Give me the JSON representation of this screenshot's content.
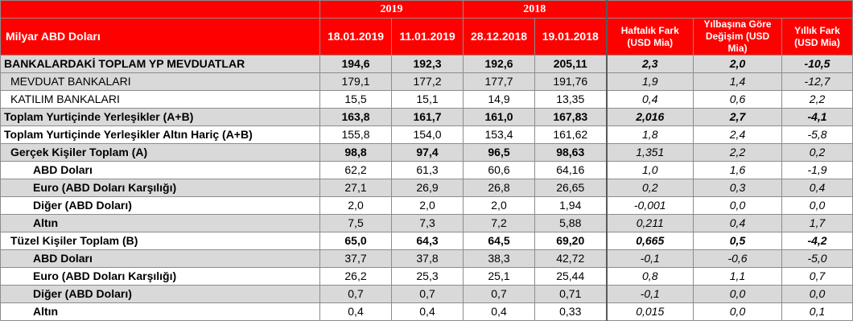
{
  "header": {
    "title": "Milyar ABD Doları",
    "year_2019": "2019",
    "year_2018": "2018",
    "dates": [
      "18.01.2019",
      "11.01.2019",
      "28.12.2018",
      "19.01.2018"
    ],
    "change_cols": [
      "Haftalık Fark (USD Mia)",
      "Yılbaşına Göre Değişim (USD Mia)",
      "Yıllık Fark (USD Mia)"
    ]
  },
  "rows": [
    {
      "label": "BANKALARDAKİ TOPLAM YP MEVDUATLAR",
      "values": [
        "194,6",
        "192,3",
        "192,6",
        "205,11"
      ],
      "changes": [
        "2,3",
        "2,0",
        "-10,5"
      ]
    },
    {
      "label": "MEVDUAT BANKALARI",
      "values": [
        "179,1",
        "177,2",
        "177,7",
        "191,76"
      ],
      "changes": [
        "1,9",
        "1,4",
        "-12,7"
      ]
    },
    {
      "label": "KATILIM BANKALARI",
      "values": [
        "15,5",
        "15,1",
        "14,9",
        "13,35"
      ],
      "changes": [
        "0,4",
        "0,6",
        "2,2"
      ]
    },
    {
      "label": "Toplam Yurtiçinde Yerleşikler (A+B)",
      "values": [
        "163,8",
        "161,7",
        "161,0",
        "167,83"
      ],
      "changes": [
        "2,016",
        "2,7",
        "-4,1"
      ]
    },
    {
      "label": "Toplam Yurtiçinde Yerleşikler Altın Hariç (A+B)",
      "values": [
        "155,8",
        "154,0",
        "153,4",
        "161,62"
      ],
      "changes": [
        "1,8",
        "2,4",
        "-5,8"
      ]
    },
    {
      "label": "Gerçek Kişiler Toplam (A)",
      "values": [
        "98,8",
        "97,4",
        "96,5",
        "98,63"
      ],
      "changes": [
        "1,351",
        "2,2",
        "0,2"
      ]
    },
    {
      "label": "ABD Doları",
      "values": [
        "62,2",
        "61,3",
        "60,6",
        "64,16"
      ],
      "changes": [
        "1,0",
        "1,6",
        "-1,9"
      ]
    },
    {
      "label": "Euro (ABD Doları Karşılığı)",
      "values": [
        "27,1",
        "26,9",
        "26,8",
        "26,65"
      ],
      "changes": [
        "0,2",
        "0,3",
        "0,4"
      ]
    },
    {
      "label": "Diğer (ABD Doları)",
      "values": [
        "2,0",
        "2,0",
        "2,0",
        "1,94"
      ],
      "changes": [
        "-0,001",
        "0,0",
        "0,0"
      ]
    },
    {
      "label": "Altın",
      "values": [
        "7,5",
        "7,3",
        "7,2",
        "5,88"
      ],
      "changes": [
        "0,211",
        "0,4",
        "1,7"
      ]
    },
    {
      "label": "Tüzel Kişiler Toplam (B)",
      "values": [
        "65,0",
        "64,3",
        "64,5",
        "69,20"
      ],
      "changes": [
        "0,665",
        "0,5",
        "-4,2"
      ]
    },
    {
      "label": "ABD Doları",
      "values": [
        "37,7",
        "37,8",
        "38,3",
        "42,72"
      ],
      "changes": [
        "-0,1",
        "-0,6",
        "-5,0"
      ]
    },
    {
      "label": "Euro (ABD Doları Karşılığı)",
      "values": [
        "26,2",
        "25,3",
        "25,1",
        "25,44"
      ],
      "changes": [
        "0,8",
        "1,1",
        "0,7"
      ]
    },
    {
      "label": "Diğer (ABD Doları)",
      "values": [
        "0,7",
        "0,7",
        "0,7",
        "0,71"
      ],
      "changes": [
        "-0,1",
        "0,0",
        "0,0"
      ]
    },
    {
      "label": "Altın",
      "values": [
        "0,4",
        "0,4",
        "0,4",
        "0,33"
      ],
      "changes": [
        "0,015",
        "0,0",
        "0,1"
      ]
    }
  ],
  "colors": {
    "header_bg": "#ff0000",
    "shade_bg": "#d9d9d9"
  }
}
